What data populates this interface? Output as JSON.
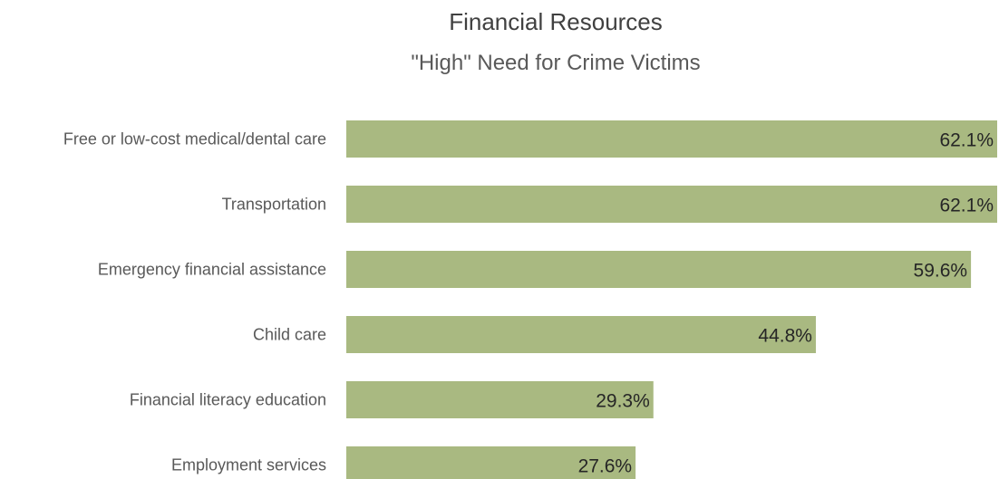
{
  "chart_data": {
    "type": "bar",
    "orientation": "horizontal",
    "title": "Financial Resources",
    "subtitle": "\"High\" Need for Crime Victims",
    "categories": [
      "Free or low-cost medical/dental care",
      "Transportation",
      "Emergency financial assistance",
      "Child care",
      "Financial literacy education",
      "Employment services"
    ],
    "values": [
      62.1,
      62.1,
      59.6,
      44.8,
      29.3,
      27.6
    ],
    "value_labels": [
      "62.1%",
      "62.1%",
      "59.6%",
      "44.8%",
      "29.3%",
      "27.6%"
    ],
    "value_unit": "%",
    "xlim": [
      0,
      62.1
    ],
    "grid": false,
    "legend": "none",
    "bar_color": "#a9b981"
  }
}
